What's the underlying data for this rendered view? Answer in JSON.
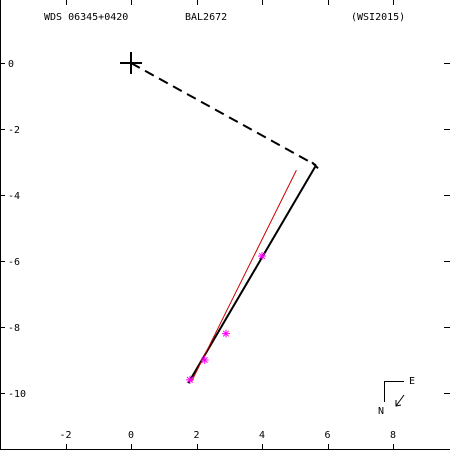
{
  "chart_data": {
    "type": "scatter",
    "header": {
      "left": "WDS 06345+0420",
      "center": "BAL2672",
      "right": "(WSI2015)"
    },
    "xlim": [
      -4,
      9.5
    ],
    "ylim": [
      -11.5,
      1.5
    ],
    "xticks": [
      -2,
      0,
      2,
      4,
      6,
      8
    ],
    "yticks": [
      0,
      -2,
      -4,
      -6,
      -8,
      -10
    ],
    "xtick_labels": [
      "-2",
      "0",
      "2",
      "4",
      "6",
      "8"
    ],
    "ytick_labels": [
      "0",
      "-2",
      "-4",
      "-6",
      "-8",
      "-10"
    ],
    "primary": {
      "x": 0,
      "y": 0
    },
    "primary_to_periastron": {
      "from": [
        0,
        0
      ],
      "to": [
        5.65,
        -3.1
      ]
    },
    "orbit_arc": {
      "from": [
        5.65,
        -3.1
      ],
      "to": [
        1.75,
        -9.7
      ]
    },
    "red_fit": {
      "from": [
        5.05,
        -3.25
      ],
      "to": [
        1.85,
        -9.65
      ]
    },
    "observations": [
      {
        "x": 1.8,
        "y": -9.6
      },
      {
        "x": 2.25,
        "y": -9.0
      },
      {
        "x": 2.9,
        "y": -8.2
      },
      {
        "x": 4.0,
        "y": -5.85
      }
    ],
    "compass": {
      "east_label": "E",
      "north_label": "N"
    },
    "colors": {
      "axes": "#000000",
      "fit": "#cc0000",
      "observations": "#ff00ff",
      "background": "#ffffff"
    }
  }
}
